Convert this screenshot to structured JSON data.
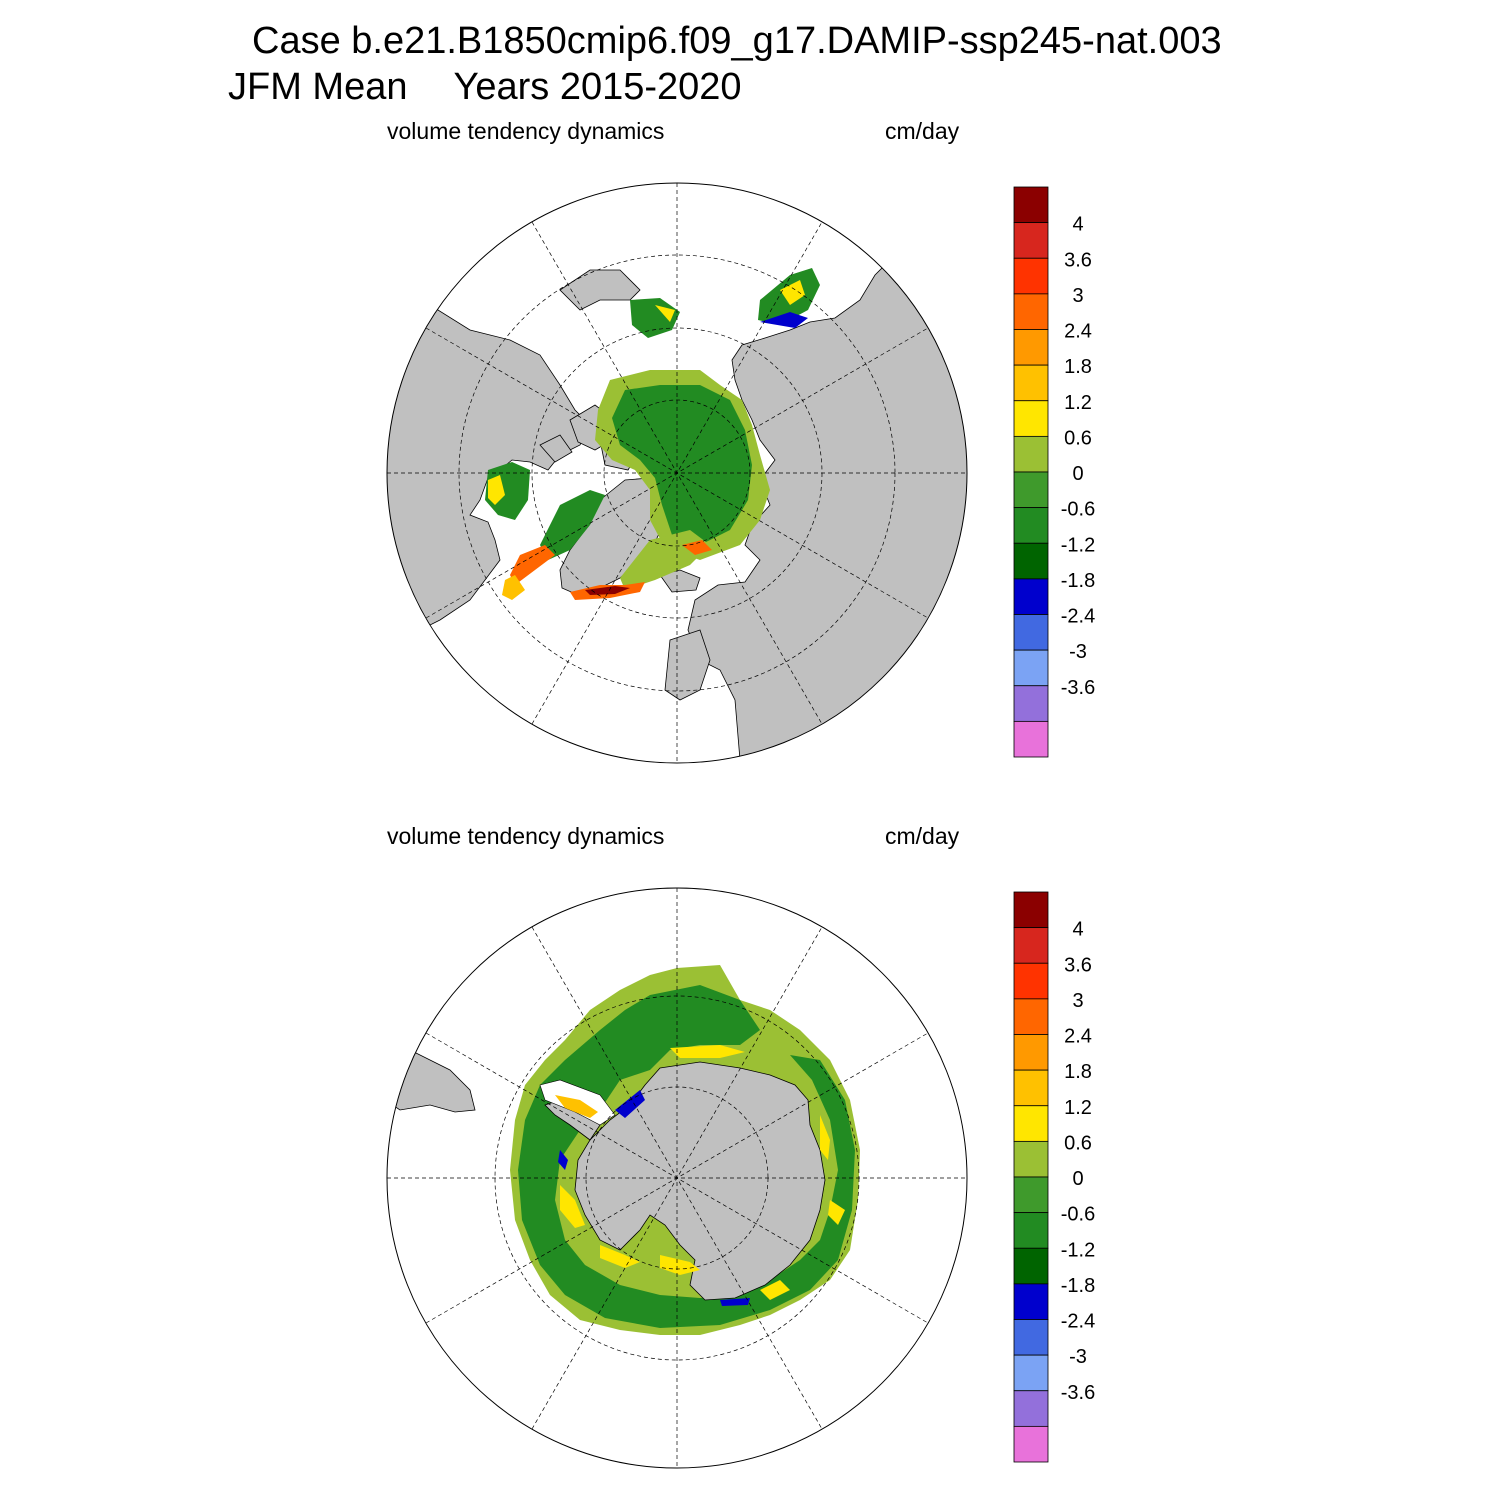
{
  "header": {
    "case_line": "Case b.e21.B1850cmip6.f09_g17.DAMIP-ssp245-nat.003",
    "period": "JFM Mean",
    "years": "Years 2015-2020"
  },
  "panels": [
    {
      "hemisphere": "north",
      "variable_label": "volume tendency dynamics",
      "units_label": "cm/day"
    },
    {
      "hemisphere": "south",
      "variable_label": "volume tendency dynamics",
      "units_label": "cm/day"
    }
  ],
  "colorbar": {
    "levels": [
      "4",
      "3.6",
      "3",
      "2.4",
      "1.8",
      "1.2",
      "0.6",
      "0",
      "-0.6",
      "-1.2",
      "-1.8",
      "-2.4",
      "-3",
      "-3.6"
    ],
    "colors": [
      "#8b0000",
      "#d7261e",
      "#ff3300",
      "#ff6600",
      "#ff9900",
      "#ffc100",
      "#ffe600",
      "#9bc034",
      "#3f9a2c",
      "#228b22",
      "#006400",
      "#0000cd",
      "#4169e1",
      "#7ba3f4",
      "#9370db",
      "#e872da"
    ]
  },
  "colors": {
    "land": "#c0c0c0",
    "ocean": "#ffffff",
    "ice_green": "#228b22",
    "ice_lightgreen": "#9bc034"
  }
}
